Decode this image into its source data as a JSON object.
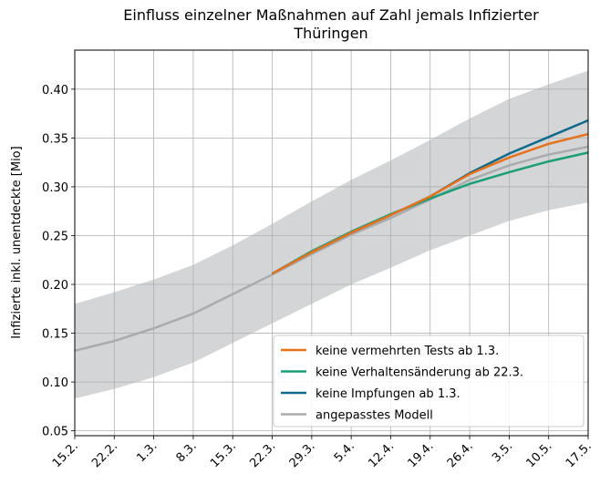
{
  "chart_data": {
    "type": "line",
    "title": "Einfluss einzelner Maßnahmen auf Zahl jemals Infizierter",
    "subtitle": "Thüringen",
    "y_label": "Infizierte inkl. unentdeckte [Mio]",
    "categories": [
      "15.2.",
      "22.2.",
      "1.3.",
      "8.3.",
      "15.3.",
      "22.3.",
      "29.3.",
      "5.4.",
      "12.4.",
      "19.4.",
      "26.4.",
      "3.5.",
      "10.5.",
      "17.5."
    ],
    "ylim": [
      0.045,
      0.44
    ],
    "yticks": [
      {
        "value": 0.05,
        "label": "0.05"
      },
      {
        "value": 0.1,
        "label": "0.10"
      },
      {
        "value": 0.15,
        "label": "0.15"
      },
      {
        "value": 0.2,
        "label": "0.20"
      },
      {
        "value": 0.25,
        "label": "0.25"
      },
      {
        "value": 0.3,
        "label": "0.30"
      },
      {
        "value": 0.35,
        "label": "0.35"
      },
      {
        "value": 0.4,
        "label": "0.40"
      }
    ],
    "grid": true,
    "legend": "lower right",
    "band": {
      "color": "#d3d5d6",
      "upper": [
        0.18,
        0.192,
        0.205,
        0.22,
        0.24,
        0.262,
        0.285,
        0.307,
        0.327,
        0.348,
        0.37,
        0.39,
        0.405,
        0.419
      ],
      "lower": [
        0.083,
        0.093,
        0.105,
        0.12,
        0.14,
        0.16,
        0.18,
        0.2,
        0.217,
        0.235,
        0.25,
        0.265,
        0.276,
        0.284
      ]
    },
    "series": [
      {
        "name": "keine vermehrten Tests ab 1.3.",
        "color": "#e8711c",
        "values": [
          null,
          null,
          null,
          null,
          null,
          0.211,
          0.233,
          0.253,
          0.271,
          0.29,
          0.313,
          0.33,
          0.344,
          0.354
        ]
      },
      {
        "name": "keine Verhaltensänderung ab 22.3.",
        "color": "#1a9e77",
        "values": [
          null,
          null,
          null,
          null,
          null,
          0.211,
          0.234,
          0.254,
          0.272,
          0.288,
          0.303,
          0.315,
          0.326,
          0.335
        ]
      },
      {
        "name": "keine Impfungen ab 1.3.",
        "color": "#116a8c",
        "values": [
          null,
          null,
          null,
          null,
          null,
          0.211,
          0.233,
          0.253,
          0.271,
          0.29,
          0.314,
          0.334,
          0.351,
          0.368
        ]
      },
      {
        "name": "angepasstes Modell",
        "color": "#a9abac",
        "values": [
          0.132,
          0.142,
          0.155,
          0.17,
          0.19,
          0.21,
          0.231,
          0.251,
          0.268,
          0.287,
          0.307,
          0.322,
          0.333,
          0.341
        ]
      }
    ]
  }
}
